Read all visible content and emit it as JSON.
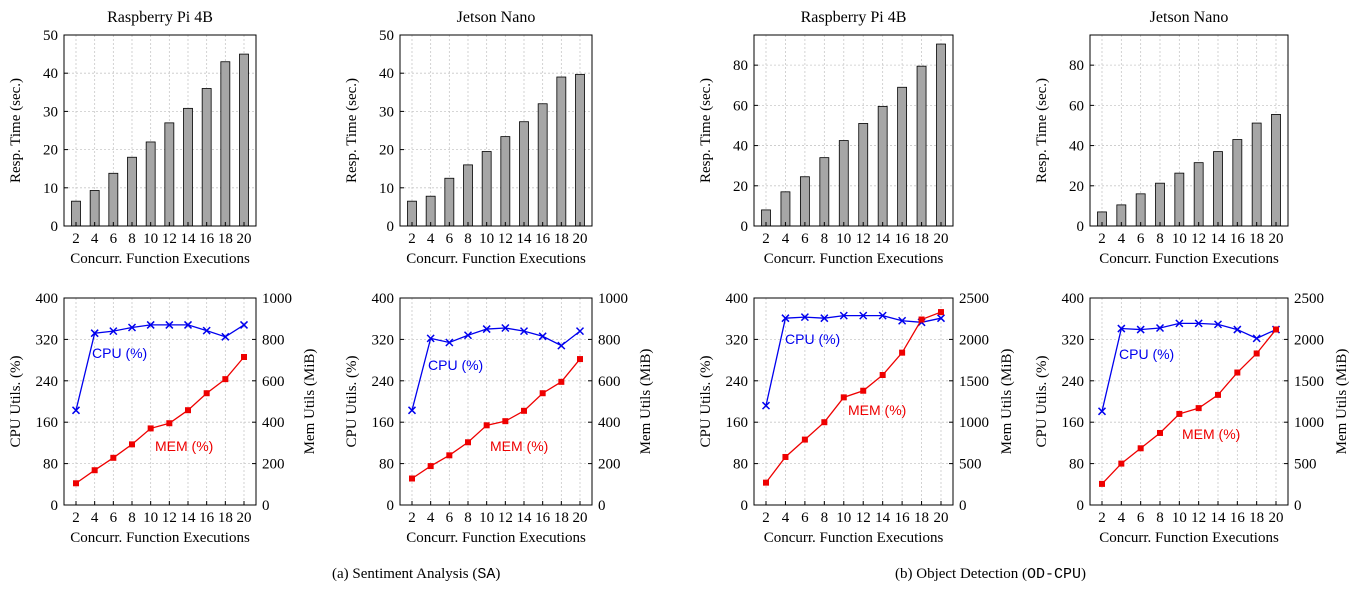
{
  "captions": {
    "a": {
      "text": "(a) Sentiment Analysis (",
      "code": "SA",
      "end": ")"
    },
    "b": {
      "text": "(b) Object Detection (",
      "code": "OD-CPU",
      "end": ")"
    }
  },
  "colors": {
    "bar": "#a6a6a6",
    "cpu": "#0000ee",
    "mem": "#ee0000",
    "grid": "#c8c8c8"
  },
  "chart_data": [
    {
      "type": "bar",
      "title": "Raspberry Pi 4B",
      "xlabel": "Concurr. Function Executions",
      "ylabel": "Resp. Time (sec.)",
      "categories": [
        "2",
        "4",
        "6",
        "8",
        "10",
        "12",
        "14",
        "16",
        "18",
        "20"
      ],
      "values": [
        6.5,
        9.3,
        13.8,
        18,
        22,
        27,
        30.8,
        36,
        43,
        45
      ],
      "ylim": [
        0,
        50
      ],
      "yticks": [
        0,
        10,
        20,
        30,
        40,
        50
      ],
      "grid": true
    },
    {
      "type": "bar",
      "title": "Jetson Nano",
      "xlabel": "Concurr. Function Executions",
      "ylabel": "Resp. Time (sec.)",
      "categories": [
        "2",
        "4",
        "6",
        "8",
        "10",
        "12",
        "14",
        "16",
        "18",
        "20"
      ],
      "values": [
        6.5,
        7.8,
        12.5,
        16,
        19.5,
        23.4,
        27.3,
        32,
        39,
        39.7
      ],
      "ylim": [
        0,
        50
      ],
      "yticks": [
        0,
        10,
        20,
        30,
        40,
        50
      ],
      "grid": true
    },
    {
      "type": "bar",
      "title": "Raspberry Pi 4B",
      "xlabel": "Concurr. Function Executions",
      "ylabel": "Resp. Time (sec.)",
      "categories": [
        "2",
        "4",
        "6",
        "8",
        "10",
        "12",
        "14",
        "16",
        "18",
        "20"
      ],
      "values": [
        8,
        17,
        24.5,
        34,
        42.5,
        51,
        59.5,
        69,
        79.5,
        90.5
      ],
      "ylim": [
        0,
        95
      ],
      "yticks": [
        0,
        20,
        40,
        60,
        80
      ],
      "grid": true
    },
    {
      "type": "bar",
      "title": "Jetson Nano",
      "xlabel": "Concurr. Function Executions",
      "ylabel": "Resp. Time (sec.)",
      "categories": [
        "2",
        "4",
        "6",
        "8",
        "10",
        "12",
        "14",
        "16",
        "18",
        "20"
      ],
      "values": [
        7,
        10.5,
        16,
        21.3,
        26.3,
        31.5,
        37,
        43,
        51.2,
        55.5
      ],
      "ylim": [
        0,
        95
      ],
      "yticks": [
        0,
        20,
        40,
        60,
        80
      ],
      "grid": true
    },
    {
      "type": "line",
      "xlabel": "Concurr. Function Executions",
      "ylabel": "CPU Utils. (%)",
      "y2label": "Mem Utils (MiB)",
      "x": [
        2,
        4,
        6,
        8,
        10,
        12,
        14,
        16,
        18,
        20
      ],
      "ylim": [
        0,
        400
      ],
      "yticks": [
        0,
        80,
        160,
        240,
        320,
        400
      ],
      "y2lim": [
        0,
        1000
      ],
      "y2ticks": [
        0,
        200,
        400,
        600,
        800,
        1000
      ],
      "grid": true,
      "series": [
        {
          "name": "CPU (%)",
          "axis": "left",
          "values": [
            183,
            332,
            336,
            343,
            348,
            348,
            348,
            337,
            325,
            348
          ]
        },
        {
          "name": "MEM (%)",
          "axis": "right",
          "values": [
            105,
            168,
            228,
            293,
            370,
            395,
            458,
            540,
            608,
            715
          ]
        }
      ]
    },
    {
      "type": "line",
      "xlabel": "Concurr. Function Executions",
      "ylabel": "CPU Utils. (%)",
      "y2label": "Mem Utils (MiB)",
      "x": [
        2,
        4,
        6,
        8,
        10,
        12,
        14,
        16,
        18,
        20
      ],
      "ylim": [
        0,
        400
      ],
      "yticks": [
        0,
        80,
        160,
        240,
        320,
        400
      ],
      "y2lim": [
        0,
        1000
      ],
      "y2ticks": [
        0,
        200,
        400,
        600,
        800,
        1000
      ],
      "grid": true,
      "series": [
        {
          "name": "CPU (%)",
          "axis": "left",
          "values": [
            183,
            322,
            314,
            328,
            340,
            342,
            336,
            326,
            308,
            336
          ]
        },
        {
          "name": "MEM (%)",
          "axis": "right",
          "values": [
            128,
            188,
            240,
            303,
            385,
            405,
            455,
            540,
            595,
            705
          ]
        }
      ]
    },
    {
      "type": "line",
      "xlabel": "Concurr. Function Executions",
      "ylabel": "CPU Utils. (%)",
      "y2label": "Mem Utils (MiB)",
      "x": [
        2,
        4,
        6,
        8,
        10,
        12,
        14,
        16,
        18,
        20
      ],
      "ylim": [
        0,
        400
      ],
      "yticks": [
        0,
        80,
        160,
        240,
        320,
        400
      ],
      "y2lim": [
        0,
        2500
      ],
      "y2ticks": [
        0,
        500,
        1000,
        1500,
        2000,
        2500
      ],
      "grid": true,
      "series": [
        {
          "name": "CPU (%)",
          "axis": "left",
          "values": [
            192,
            361,
            363,
            361,
            366,
            366,
            366,
            356,
            353,
            361
          ]
        },
        {
          "name": "MEM (%)",
          "axis": "right",
          "values": [
            270,
            580,
            790,
            1000,
            1300,
            1380,
            1570,
            1840,
            2240,
            2330
          ]
        }
      ]
    },
    {
      "type": "line",
      "xlabel": "Concurr. Function Executions",
      "ylabel": "CPU Utils. (%)",
      "y2label": "Mem Utils (MiB)",
      "x": [
        2,
        4,
        6,
        8,
        10,
        12,
        14,
        16,
        18,
        20
      ],
      "ylim": [
        0,
        400
      ],
      "yticks": [
        0,
        80,
        160,
        240,
        320,
        400
      ],
      "y2lim": [
        0,
        2500
      ],
      "y2ticks": [
        0,
        500,
        1000,
        1500,
        2000,
        2500
      ],
      "grid": true,
      "series": [
        {
          "name": "CPU (%)",
          "axis": "left",
          "values": [
            181,
            341,
            339,
            342,
            351,
            351,
            349,
            339,
            322,
            339
          ]
        },
        {
          "name": "MEM (%)",
          "axis": "right",
          "values": [
            255,
            500,
            685,
            870,
            1100,
            1170,
            1330,
            1600,
            1830,
            2120
          ]
        }
      ]
    }
  ]
}
